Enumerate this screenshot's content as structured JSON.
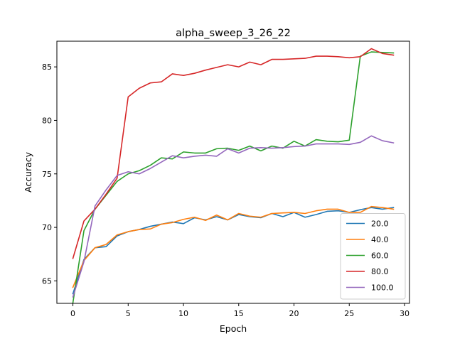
{
  "chart_data": {
    "type": "line",
    "title": "alpha_sweep_3_26_22",
    "xlabel": "Epoch",
    "ylabel": "Accuracy",
    "xlim": [
      -1.45,
      30.45
    ],
    "ylim": [
      62.9,
      87.4
    ],
    "xticks": [
      0,
      5,
      10,
      15,
      20,
      25,
      30
    ],
    "yticks": [
      65,
      70,
      75,
      80,
      85
    ],
    "grid": false,
    "legend_position": "lower-right",
    "x": [
      0,
      1,
      2,
      3,
      4,
      5,
      6,
      7,
      8,
      9,
      10,
      11,
      12,
      13,
      14,
      15,
      16,
      17,
      18,
      19,
      20,
      21,
      22,
      23,
      24,
      25,
      26,
      27,
      28,
      29
    ],
    "series": [
      {
        "name": "20.0",
        "color": "#1f77b4",
        "values": [
          63.8,
          67.0,
          68.1,
          68.2,
          69.2,
          69.6,
          69.8,
          70.1,
          70.3,
          70.5,
          70.35,
          70.9,
          70.7,
          71.0,
          70.7,
          71.2,
          71.0,
          70.9,
          71.3,
          71.0,
          71.4,
          70.95,
          71.2,
          71.5,
          71.55,
          71.4,
          71.65,
          71.85,
          71.7,
          71.85
        ]
      },
      {
        "name": "40.0",
        "color": "#ff7f0e",
        "values": [
          64.4,
          66.9,
          68.1,
          68.4,
          69.3,
          69.6,
          69.8,
          69.85,
          70.3,
          70.45,
          70.75,
          70.95,
          70.65,
          71.15,
          70.7,
          71.3,
          71.05,
          70.95,
          71.3,
          71.35,
          71.4,
          71.3,
          71.55,
          71.7,
          71.7,
          71.4,
          71.4,
          71.95,
          71.85,
          71.7
        ]
      },
      {
        "name": "60.0",
        "color": "#2ca02c",
        "values": [
          62.95,
          69.7,
          71.7,
          73.0,
          74.3,
          75.0,
          75.3,
          75.8,
          76.5,
          76.4,
          77.05,
          76.95,
          76.95,
          77.35,
          77.4,
          77.2,
          77.6,
          77.15,
          77.6,
          77.4,
          78.05,
          77.6,
          78.2,
          78.05,
          78.0,
          78.15,
          86.0,
          86.4,
          86.35,
          86.3
        ]
      },
      {
        "name": "80.0",
        "color": "#d62728",
        "values": [
          67.1,
          70.6,
          71.7,
          73.1,
          74.6,
          82.2,
          83.0,
          83.5,
          83.6,
          84.35,
          84.2,
          84.4,
          84.7,
          84.95,
          85.2,
          85.0,
          85.45,
          85.2,
          85.7,
          85.7,
          85.75,
          85.8,
          86.0,
          86.0,
          85.95,
          85.85,
          85.95,
          86.7,
          86.25,
          86.1
        ]
      },
      {
        "name": "100.0",
        "color": "#9467bd",
        "values": [
          63.5,
          66.8,
          72.0,
          73.5,
          74.85,
          75.2,
          75.0,
          75.5,
          76.1,
          76.7,
          76.5,
          76.65,
          76.75,
          76.65,
          77.35,
          76.95,
          77.4,
          77.45,
          77.4,
          77.45,
          77.55,
          77.6,
          77.8,
          77.8,
          77.8,
          77.75,
          77.95,
          78.55,
          78.1,
          77.9
        ]
      }
    ]
  }
}
